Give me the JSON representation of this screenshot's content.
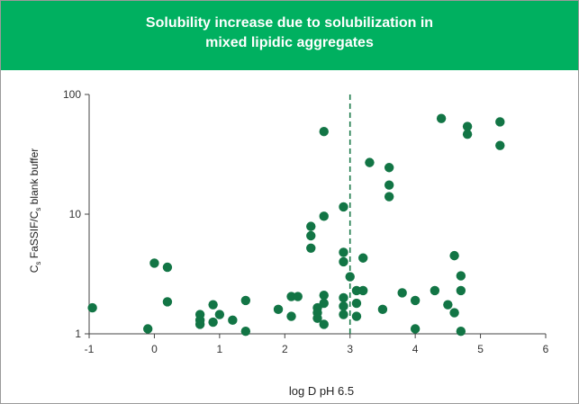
{
  "header": {
    "title_line1": "Solubility increase due to solubilization in",
    "title_line2": "mixed lipidic aggregates"
  },
  "colors": {
    "header_bg": "#00b060",
    "marker": "#127545",
    "axis": "#444444"
  },
  "chart_data": {
    "type": "scatter",
    "title": "Solubility increase due to solubilization in mixed lipidic aggregates",
    "xlabel": "log D pH 6.5",
    "ylabel_parts": [
      "C",
      "s",
      " FaSSIF/C",
      "s",
      " blank buffer"
    ],
    "xlim": [
      -1,
      6
    ],
    "ylim": [
      1,
      100
    ],
    "yscale": "log",
    "xticks": [
      "-1",
      "0",
      "1",
      "2",
      "3",
      "4",
      "5",
      "6"
    ],
    "yticks": [
      "1",
      "10",
      "100"
    ],
    "reference_line": {
      "x": 3,
      "style": "dashed"
    },
    "points": [
      [
        -0.95,
        1.65
      ],
      [
        -0.1,
        1.1
      ],
      [
        0,
        3.9
      ],
      [
        0.2,
        3.6
      ],
      [
        0.2,
        1.85
      ],
      [
        0.7,
        1.45
      ],
      [
        0.7,
        1.3
      ],
      [
        0.7,
        1.2
      ],
      [
        0.9,
        1.75
      ],
      [
        0.9,
        1.25
      ],
      [
        1,
        1.45
      ],
      [
        1.2,
        1.3
      ],
      [
        1.4,
        1.9
      ],
      [
        1.4,
        1.05
      ],
      [
        1.9,
        1.6
      ],
      [
        2.1,
        2.05
      ],
      [
        2.1,
        1.4
      ],
      [
        2.2,
        2.05
      ],
      [
        2.4,
        7.9
      ],
      [
        2.4,
        6.6
      ],
      [
        2.4,
        5.2
      ],
      [
        2.5,
        1.65
      ],
      [
        2.5,
        1.5
      ],
      [
        2.5,
        1.35
      ],
      [
        2.6,
        49
      ],
      [
        2.6,
        9.6
      ],
      [
        2.6,
        2.1
      ],
      [
        2.6,
        1.8
      ],
      [
        2.6,
        1.2
      ],
      [
        2.9,
        11.5
      ],
      [
        2.9,
        4.8
      ],
      [
        2.9,
        4.0
      ],
      [
        2.9,
        2.0
      ],
      [
        2.9,
        1.7
      ],
      [
        2.9,
        1.45
      ],
      [
        3,
        3.0
      ],
      [
        3.1,
        2.3
      ],
      [
        3.1,
        1.8
      ],
      [
        3.1,
        1.4
      ],
      [
        3.2,
        4.3
      ],
      [
        3.2,
        2.3
      ],
      [
        3.3,
        27
      ],
      [
        3.5,
        1.6
      ],
      [
        3.6,
        24.5
      ],
      [
        3.6,
        17.5
      ],
      [
        3.6,
        14
      ],
      [
        3.8,
        2.2
      ],
      [
        4,
        1.9
      ],
      [
        4,
        1.1
      ],
      [
        4.3,
        2.3
      ],
      [
        4.4,
        63
      ],
      [
        4.5,
        1.75
      ],
      [
        4.6,
        4.5
      ],
      [
        4.6,
        1.5
      ],
      [
        4.7,
        3.05
      ],
      [
        4.7,
        2.3
      ],
      [
        4.7,
        1.05
      ],
      [
        4.8,
        54
      ],
      [
        4.8,
        46.5
      ],
      [
        5.3,
        59
      ],
      [
        5.3,
        37.5
      ]
    ]
  }
}
